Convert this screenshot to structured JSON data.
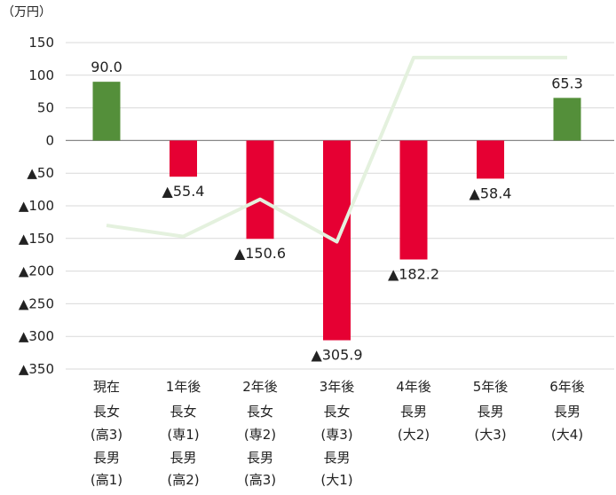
{
  "chart_data": {
    "type": "bar",
    "unit_label": "（万円）",
    "ylim": [
      -350,
      150
    ],
    "yticks": [
      150,
      100,
      50,
      0,
      -50,
      -100,
      -150,
      -200,
      -250,
      -300,
      -350
    ],
    "ytick_labels": [
      "150",
      "100",
      "50",
      "0",
      "▲50",
      "▲100",
      "▲150",
      "▲200",
      "▲250",
      "▲300",
      "▲350"
    ],
    "grid": true,
    "categories": [
      [
        "現在",
        "長女",
        "(高3)",
        "長男",
        "(高1)"
      ],
      [
        "1年後",
        "長女",
        "(専1)",
        "長男",
        "(高2)"
      ],
      [
        "2年後",
        "長女",
        "(専2)",
        "長男",
        "(高3)"
      ],
      [
        "3年後",
        "長女",
        "(専3)",
        "長男",
        "(大1)"
      ],
      [
        "4年後",
        "長男",
        "(大2)"
      ],
      [
        "5年後",
        "長男",
        "(大3)"
      ],
      [
        "6年後",
        "長男",
        "(大4)"
      ]
    ],
    "values": [
      90.0,
      -55.4,
      -150.6,
      -305.9,
      -182.2,
      -58.4,
      65.3
    ],
    "value_labels": [
      "90.0",
      "▲55.4",
      "▲150.6",
      "▲305.9",
      "▲182.2",
      "▲58.4",
      "65.3"
    ],
    "line_values": [
      -130,
      -147,
      -90,
      -155,
      127,
      127,
      127
    ],
    "colors": {
      "positive": "#548f3a",
      "negative": "#e60033",
      "line": "#e4f1de",
      "grid": "#d9d9d9",
      "axis": "#888888"
    }
  }
}
